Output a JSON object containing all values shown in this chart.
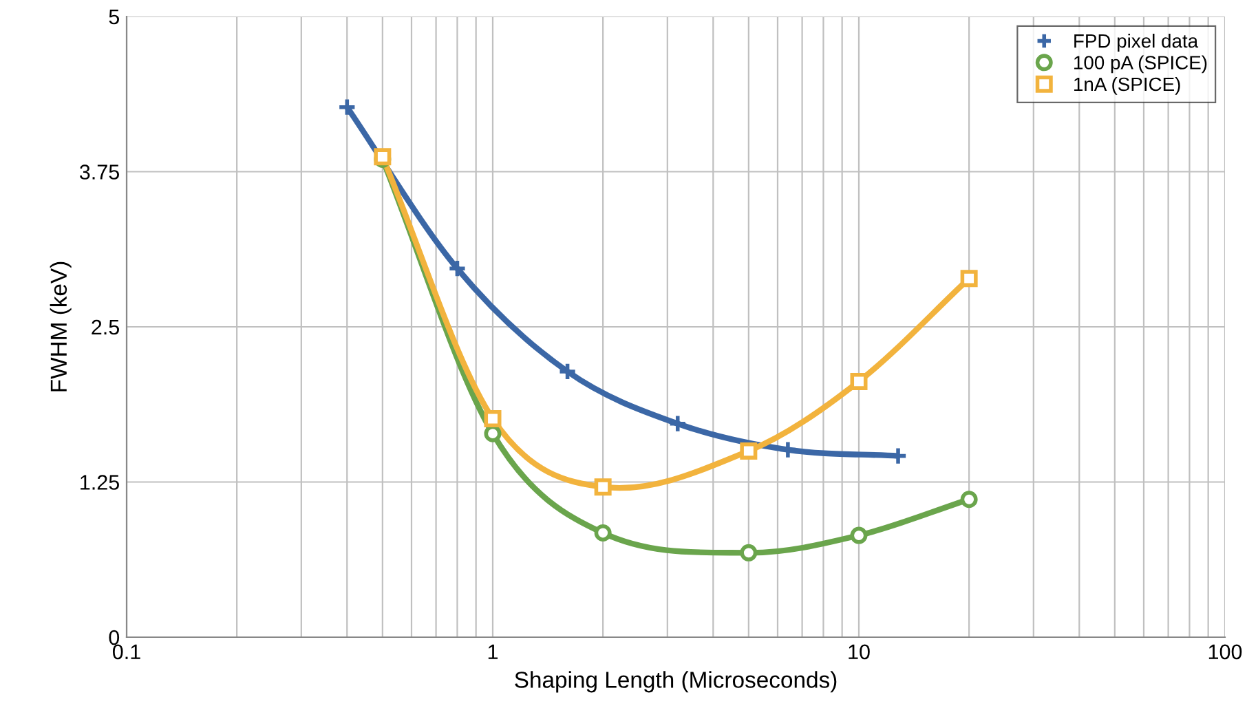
{
  "chart_data": {
    "type": "line",
    "xlabel": "Shaping Length (Microseconds)",
    "ylabel": "FWHM (keV)",
    "log": "x",
    "xlim": [
      0.1,
      100
    ],
    "xticks": [
      0.1,
      1,
      10,
      100
    ],
    "ylim": [
      0,
      5
    ],
    "yticks": [
      0,
      1.25,
      2.5,
      3.75,
      5
    ],
    "grid": true,
    "legend": "top right",
    "series": [
      {
        "name": "FPD pixel data",
        "color": "#3b67a6",
        "marker": "cross",
        "x": [
          0.4,
          0.8,
          1.6,
          3.2,
          6.4,
          12.8
        ],
        "values": [
          4.27,
          2.97,
          2.14,
          1.72,
          1.51,
          1.46
        ]
      },
      {
        "name": "100 pA (SPICE)",
        "color": "#6aa54c",
        "marker": "circle",
        "x": [
          0.5,
          1,
          2,
          5,
          10,
          20
        ],
        "values": [
          3.85,
          1.64,
          0.84,
          0.68,
          0.82,
          1.11
        ]
      },
      {
        "name": "1nA (SPICE)",
        "color": "#f2b33d",
        "marker": "square",
        "x": [
          0.5,
          1,
          2,
          5,
          10,
          20
        ],
        "values": [
          3.87,
          1.76,
          1.21,
          1.5,
          2.06,
          2.89
        ]
      }
    ]
  }
}
